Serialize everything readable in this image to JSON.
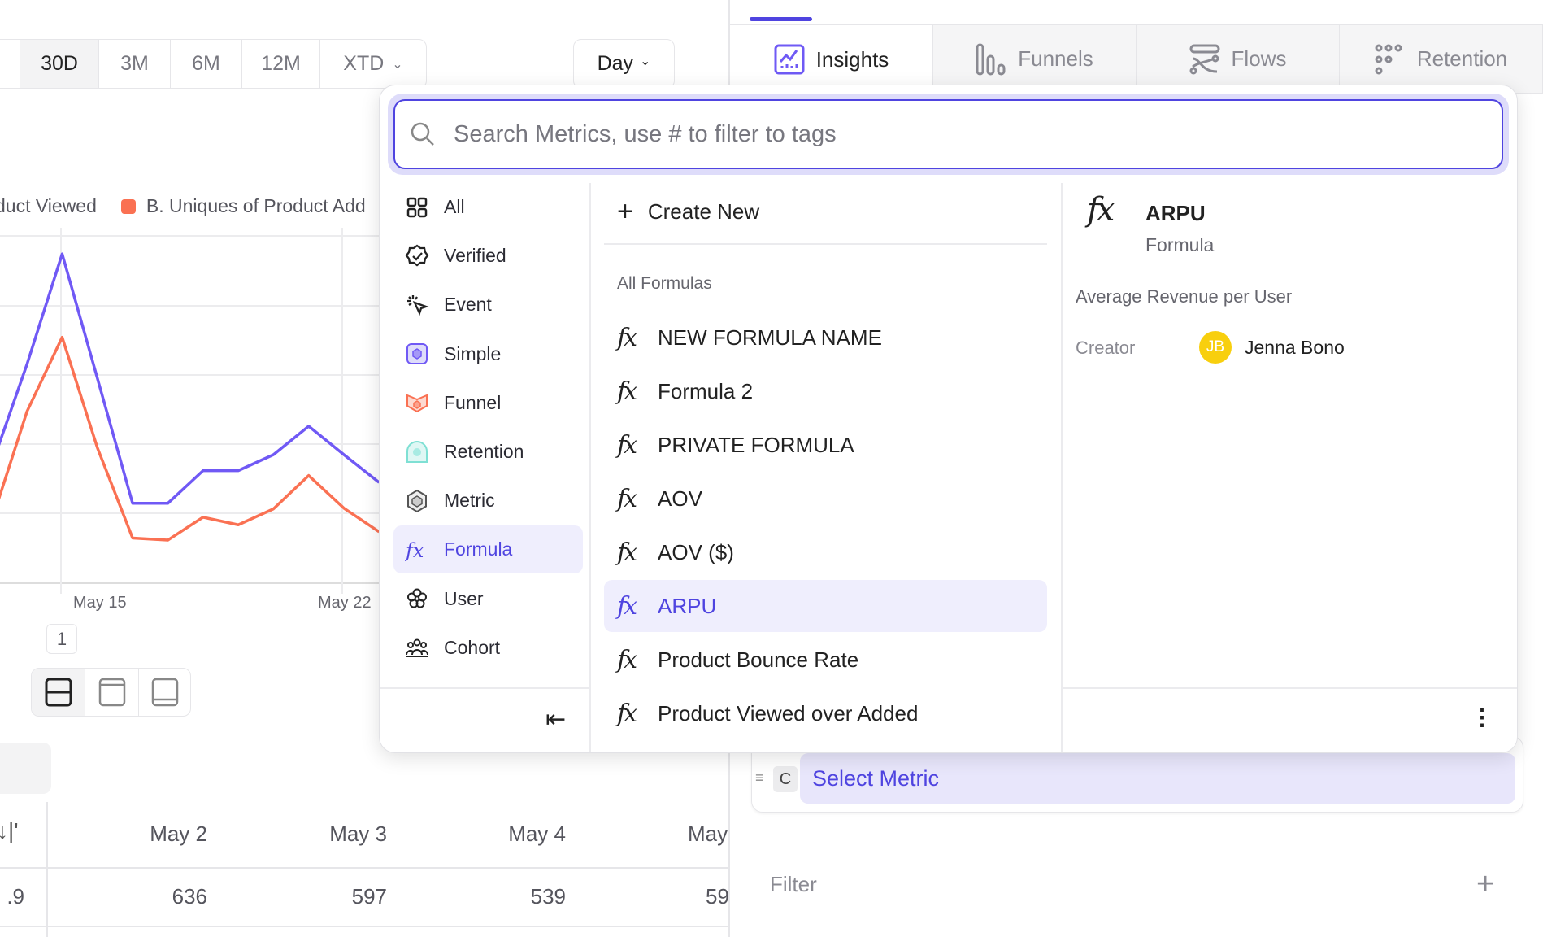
{
  "time_range": {
    "options": [
      "30D",
      "3M",
      "6M",
      "12M",
      "XTD"
    ],
    "selected": "30D"
  },
  "interval": {
    "label": "Day"
  },
  "tabs": [
    {
      "label": "Insights",
      "icon": "insights-icon",
      "active": true
    },
    {
      "label": "Funnels",
      "icon": "funnels-icon"
    },
    {
      "label": "Flows",
      "icon": "flows-icon"
    },
    {
      "label": "Retention",
      "icon": "retention-icon"
    }
  ],
  "legend": [
    "duct Viewed",
    "B. Uniques of Product Add"
  ],
  "colors": {
    "accent": "#4f44e0",
    "series_a": "#7059f5",
    "series_b": "#fa7153"
  },
  "chart_data": {
    "type": "line",
    "x_tick_labels": [
      "May 15",
      "May 22"
    ],
    "x": [
      12,
      13,
      14,
      15,
      16,
      17,
      18,
      19,
      20,
      21,
      22,
      23
    ],
    "series": [
      {
        "name": "duct Viewed",
        "color": "#7059f5",
        "values": [
          1.7,
          3.15,
          4.74,
          2.95,
          1.15,
          1.15,
          1.62,
          1.62,
          1.85,
          2.26,
          1.85,
          1.45
        ]
      },
      {
        "name": "B. Uniques of Product Add",
        "color": "#fa7153",
        "values": [
          0.9,
          2.47,
          3.54,
          1.95,
          0.65,
          0.62,
          0.95,
          0.84,
          1.07,
          1.55,
          1.08,
          0.74
        ]
      }
    ],
    "grid": true,
    "ylim": [
      0,
      5
    ]
  },
  "page_indicator": "1",
  "table": {
    "columns": [
      "May 2",
      "May 3",
      "May 4",
      "May"
    ],
    "row": [
      ".9",
      "636",
      "597",
      "539",
      "59"
    ]
  },
  "popup": {
    "search_placeholder": "Search Metrics, use # to filter to tags",
    "categories": [
      {
        "label": "All",
        "icon": "grid-icon"
      },
      {
        "label": "Verified",
        "icon": "verified-icon"
      },
      {
        "label": "Event",
        "icon": "event-cursor-icon"
      },
      {
        "label": "Simple",
        "icon": "simple-metric-icon"
      },
      {
        "label": "Funnel",
        "icon": "funnel-icon"
      },
      {
        "label": "Retention",
        "icon": "retention-icon"
      },
      {
        "label": "Metric",
        "icon": "metric-icon"
      },
      {
        "label": "Formula",
        "icon": "formula-icon",
        "selected": true
      },
      {
        "label": "User",
        "icon": "user-icon"
      },
      {
        "label": "Cohort",
        "icon": "cohort-icon"
      }
    ],
    "create_new": "Create New",
    "section_title": "All Formulas",
    "formulas": [
      "NEW FORMULA NAME",
      "Formula 2",
      "PRIVATE FORMULA",
      "AOV",
      "AOV ($)",
      "ARPU",
      "Product Bounce Rate",
      "Product Viewed over Added"
    ],
    "selected_formula": "ARPU",
    "detail": {
      "title": "ARPU",
      "type": "Formula",
      "description": "Average Revenue per User",
      "creator_label": "Creator",
      "creator_initials": "JB",
      "creator_name": "Jenna Bono"
    }
  },
  "metric_row": {
    "letter": "C",
    "label": "Select Metric"
  },
  "filter": {
    "label": "Filter"
  }
}
